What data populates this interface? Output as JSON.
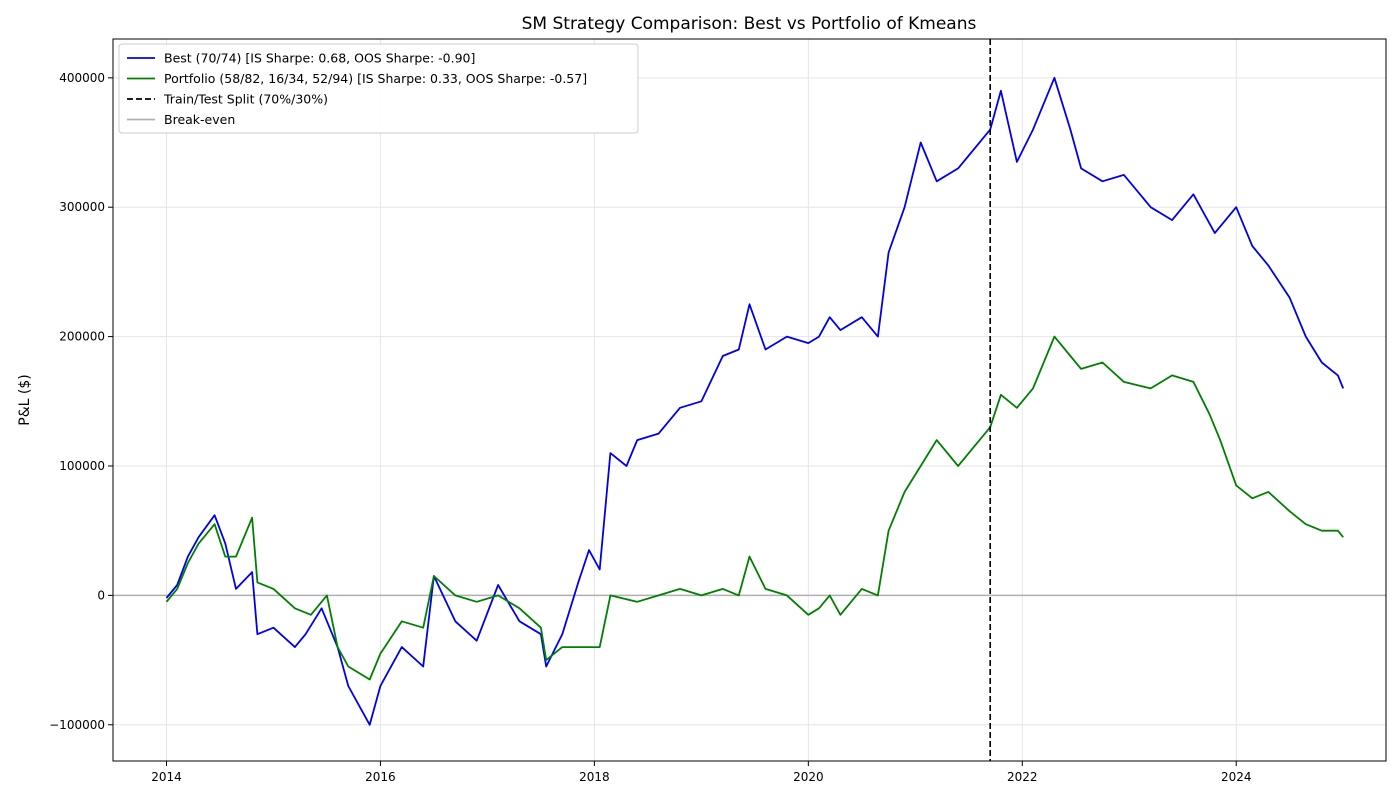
{
  "chart_data": {
    "type": "line",
    "title": "SM Strategy Comparison: Best vs Portfolio of Kmeans",
    "xlabel": "",
    "ylabel": "P&L ($)",
    "xlim": [
      2013.5,
      2025.4
    ],
    "ylim": [
      -128000,
      430000
    ],
    "grid": true,
    "legend_position": "top-left",
    "x_ticks": [
      2014,
      2016,
      2018,
      2020,
      2022,
      2024
    ],
    "x_tick_labels": [
      "2014",
      "2016",
      "2018",
      "2020",
      "2022",
      "2024"
    ],
    "y_ticks": [
      -100000,
      0,
      100000,
      200000,
      300000,
      400000
    ],
    "y_tick_labels": [
      "−100000",
      "0",
      "100000",
      "200000",
      "300000",
      "400000"
    ],
    "split_x": 2021.7,
    "breakeven_y": 0,
    "series": [
      {
        "name": "Best (70/74) [IS Sharpe: 0.68, OOS Sharpe: -0.90]",
        "color": "#0000ee",
        "style": "solid",
        "x": [
          2014.0,
          2014.1,
          2014.2,
          2014.3,
          2014.45,
          2014.55,
          2014.65,
          2014.8,
          2014.85,
          2015.0,
          2015.2,
          2015.3,
          2015.45,
          2015.6,
          2015.7,
          2015.8,
          2015.9,
          2016.0,
          2016.2,
          2016.4,
          2016.5,
          2016.7,
          2016.9,
          2017.1,
          2017.3,
          2017.5,
          2017.55,
          2017.7,
          2017.85,
          2017.95,
          2018.05,
          2018.15,
          2018.3,
          2018.4,
          2018.6,
          2018.8,
          2019.0,
          2019.2,
          2019.35,
          2019.45,
          2019.6,
          2019.8,
          2020.0,
          2020.1,
          2020.2,
          2020.3,
          2020.5,
          2020.65,
          2020.75,
          2020.9,
          2021.05,
          2021.2,
          2021.4,
          2021.5,
          2021.7,
          2021.8,
          2021.95,
          2022.1,
          2022.3,
          2022.45,
          2022.55,
          2022.75,
          2022.95,
          2023.2,
          2023.4,
          2023.6,
          2023.8,
          2024.0,
          2024.15,
          2024.3,
          2024.5,
          2024.65,
          2024.8,
          2024.95,
          2025.0
        ],
        "y": [
          -2000,
          8000,
          30000,
          45000,
          62000,
          40000,
          5000,
          18000,
          -30000,
          -25000,
          -40000,
          -30000,
          -10000,
          -40000,
          -70000,
          -85000,
          -100000,
          -70000,
          -40000,
          -55000,
          15000,
          -20000,
          -35000,
          8000,
          -20000,
          -30000,
          -55000,
          -30000,
          10000,
          35000,
          20000,
          110000,
          100000,
          120000,
          125000,
          145000,
          150000,
          185000,
          190000,
          225000,
          190000,
          200000,
          195000,
          200000,
          215000,
          205000,
          215000,
          200000,
          265000,
          300000,
          350000,
          320000,
          330000,
          340000,
          360000,
          390000,
          335000,
          360000,
          400000,
          360000,
          330000,
          320000,
          325000,
          300000,
          290000,
          310000,
          280000,
          300000,
          270000,
          255000,
          230000,
          200000,
          180000,
          170000,
          160000
        ]
      },
      {
        "name": "Portfolio (58/82, 16/34, 52/94) [IS Sharpe: 0.33, OOS Sharpe: -0.57]",
        "color": "#008000",
        "style": "solid",
        "x": [
          2014.0,
          2014.1,
          2014.2,
          2014.3,
          2014.45,
          2014.55,
          2014.65,
          2014.8,
          2014.85,
          2015.0,
          2015.2,
          2015.35,
          2015.5,
          2015.6,
          2015.7,
          2015.8,
          2015.9,
          2016.0,
          2016.2,
          2016.4,
          2016.5,
          2016.7,
          2016.9,
          2017.1,
          2017.3,
          2017.5,
          2017.55,
          2017.7,
          2017.9,
          2018.05,
          2018.15,
          2018.4,
          2018.6,
          2018.8,
          2019.0,
          2019.2,
          2019.35,
          2019.45,
          2019.6,
          2019.8,
          2020.0,
          2020.1,
          2020.2,
          2020.3,
          2020.5,
          2020.65,
          2020.75,
          2020.9,
          2021.05,
          2021.2,
          2021.4,
          2021.5,
          2021.7,
          2021.8,
          2021.95,
          2022.1,
          2022.3,
          2022.45,
          2022.55,
          2022.75,
          2022.95,
          2023.2,
          2023.4,
          2023.6,
          2023.75,
          2023.85,
          2024.0,
          2024.15,
          2024.3,
          2024.5,
          2024.65,
          2024.8,
          2024.95,
          2025.0
        ],
        "y": [
          -5000,
          5000,
          25000,
          40000,
          55000,
          30000,
          30000,
          60000,
          10000,
          5000,
          -10000,
          -15000,
          0,
          -40000,
          -55000,
          -60000,
          -65000,
          -45000,
          -20000,
          -25000,
          15000,
          0,
          -5000,
          0,
          -10000,
          -25000,
          -50000,
          -40000,
          -40000,
          -40000,
          0,
          -5000,
          0,
          5000,
          0,
          5000,
          0,
          30000,
          5000,
          0,
          -15000,
          -10000,
          0,
          -15000,
          5000,
          0,
          50000,
          80000,
          100000,
          120000,
          100000,
          110000,
          130000,
          155000,
          145000,
          160000,
          200000,
          185000,
          175000,
          180000,
          165000,
          160000,
          170000,
          165000,
          140000,
          120000,
          85000,
          75000,
          80000,
          65000,
          55000,
          50000,
          50000,
          45000
        ]
      }
    ]
  },
  "legend": {
    "items": [
      {
        "label": "Best (70/74) [IS Sharpe: 0.68, OOS Sharpe: -0.90]",
        "color": "#0000ee",
        "style": "solid"
      },
      {
        "label": "Portfolio (58/82, 16/34, 52/94) [IS Sharpe: 0.33, OOS Sharpe: -0.57]",
        "color": "#008000",
        "style": "solid"
      },
      {
        "label": "Train/Test Split (70%/30%)",
        "color": "#000000",
        "style": "dashed"
      },
      {
        "label": "Break-even",
        "color": "#b0b0b0",
        "style": "solid"
      }
    ]
  }
}
